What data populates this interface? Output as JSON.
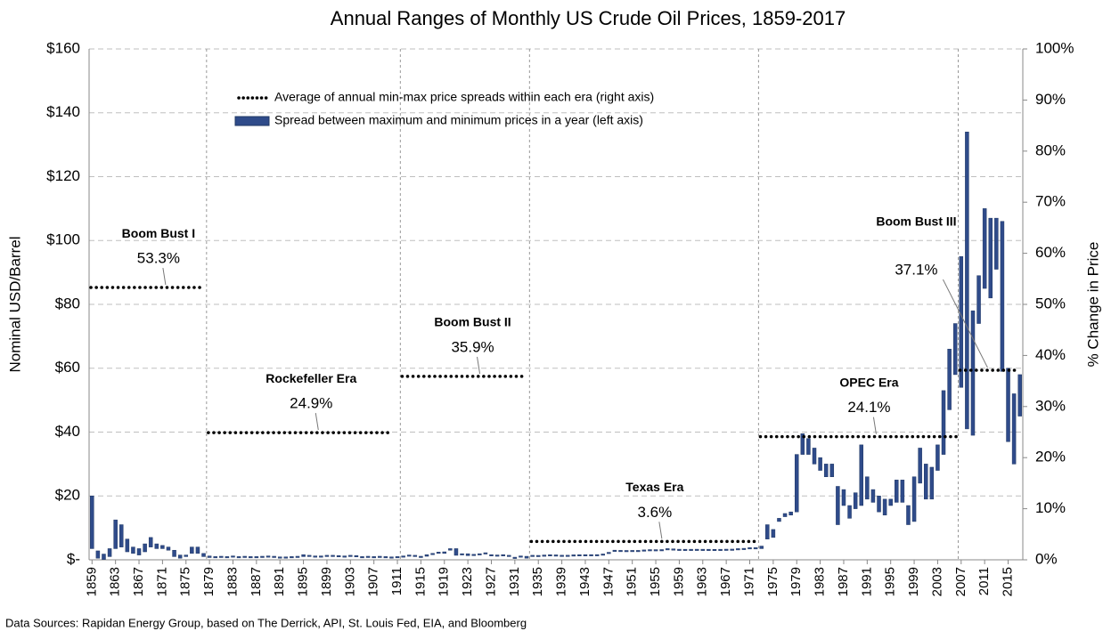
{
  "chart_data": {
    "type": "floating_bar",
    "title": "Annual Ranges of Monthly US Crude Oil Prices, 1859-2017",
    "ylabel": "Nominal USD/Barrel",
    "y2label": "% Change in Price",
    "annotation": "Data Sources:  Rapidan Energy Group, based on The Derrick, API, St. Louis Fed, EIA, and Bloomberg",
    "xlim": [
      1858.5,
      2017.5
    ],
    "xticks": [
      1859,
      1863,
      1867,
      1871,
      1875,
      1879,
      1883,
      1887,
      1891,
      1895,
      1899,
      1903,
      1907,
      1911,
      1915,
      1919,
      1923,
      1927,
      1931,
      1935,
      1939,
      1943,
      1947,
      1951,
      1955,
      1959,
      1963,
      1967,
      1971,
      1975,
      1979,
      1983,
      1987,
      1991,
      1995,
      1999,
      2003,
      2007,
      2011,
      2015
    ],
    "ylim": [
      0,
      160
    ],
    "yticks": [
      {
        "value": 0,
        "label": "$-"
      },
      {
        "value": 20,
        "label": "$20"
      },
      {
        "value": 40,
        "label": "$40"
      },
      {
        "value": 60,
        "label": "$60"
      },
      {
        "value": 80,
        "label": "$80"
      },
      {
        "value": 100,
        "label": "$100"
      },
      {
        "value": 120,
        "label": "$120"
      },
      {
        "value": 140,
        "label": "$140"
      },
      {
        "value": 160,
        "label": "$160"
      }
    ],
    "y2lim": [
      0,
      100
    ],
    "y2ticks": [
      {
        "value": 0,
        "label": "0%"
      },
      {
        "value": 10,
        "label": "10%"
      },
      {
        "value": 20,
        "label": "20%"
      },
      {
        "value": 30,
        "label": "30%"
      },
      {
        "value": 40,
        "label": "40%"
      },
      {
        "value": 50,
        "label": "50%"
      },
      {
        "value": 60,
        "label": "60%"
      },
      {
        "value": 70,
        "label": "70%"
      },
      {
        "value": 80,
        "label": "80%"
      },
      {
        "value": 90,
        "label": "90%"
      },
      {
        "value": 100,
        "label": "100%"
      }
    ],
    "grid": true,
    "series": [
      {
        "name": "Average of annual min-max price spreads within each era  (right axis)",
        "axis": "y2",
        "color": "#000000",
        "eras": [
          {
            "name": "Boom Bust I",
            "start": 1859,
            "end": 1878
          },
          {
            "name": "Rockefeller Era",
            "start": 1879,
            "end": 1910
          },
          {
            "name": "Boom Bust II",
            "start": 1912,
            "end": 1932
          },
          {
            "name": "Texas Era",
            "start": 1934,
            "end": 1972
          },
          {
            "name": "OPEC Era",
            "start": 1973,
            "end": 2006
          },
          {
            "name": "Boom Bust III",
            "start": 2007,
            "end": 2016
          }
        ],
        "values": [
          53.3,
          24.9,
          35.9,
          3.6,
          24.1,
          37.1
        ],
        "value_labels": [
          "53.3%",
          "24.9%",
          "35.9%",
          "3.6%",
          "24.1%",
          "37.1%"
        ]
      },
      {
        "name": "Spread between maximum and minimum prices in a year (left axis)",
        "color": "#2f4b8a",
        "x": [
          1859,
          1860,
          1861,
          1862,
          1863,
          1864,
          1865,
          1866,
          1867,
          1868,
          1869,
          1870,
          1871,
          1872,
          1873,
          1874,
          1875,
          1876,
          1877,
          1878,
          1879,
          1880,
          1881,
          1882,
          1883,
          1884,
          1885,
          1886,
          1887,
          1888,
          1889,
          1890,
          1891,
          1892,
          1893,
          1894,
          1895,
          1896,
          1897,
          1898,
          1899,
          1900,
          1901,
          1902,
          1903,
          1904,
          1905,
          1906,
          1907,
          1908,
          1909,
          1910,
          1911,
          1912,
          1913,
          1914,
          1915,
          1916,
          1917,
          1918,
          1919,
          1920,
          1921,
          1922,
          1923,
          1924,
          1925,
          1926,
          1927,
          1928,
          1929,
          1930,
          1931,
          1932,
          1933,
          1934,
          1935,
          1936,
          1937,
          1938,
          1939,
          1940,
          1941,
          1942,
          1943,
          1944,
          1945,
          1946,
          1947,
          1948,
          1949,
          1950,
          1951,
          1952,
          1953,
          1954,
          1955,
          1956,
          1957,
          1958,
          1959,
          1960,
          1961,
          1962,
          1963,
          1964,
          1965,
          1966,
          1967,
          1968,
          1969,
          1970,
          1971,
          1972,
          1973,
          1974,
          1975,
          1976,
          1977,
          1978,
          1979,
          1980,
          1981,
          1982,
          1983,
          1984,
          1985,
          1986,
          1987,
          1988,
          1989,
          1990,
          1991,
          1992,
          1993,
          1994,
          1995,
          1996,
          1997,
          1998,
          1999,
          2000,
          2001,
          2002,
          2003,
          2004,
          2005,
          2006,
          2007,
          2008,
          2009,
          2010,
          2011,
          2012,
          2013,
          2014,
          2015,
          2016,
          2017
        ],
        "low": [
          3.5,
          0.5,
          0.1,
          1,
          3.5,
          4,
          2.5,
          2,
          1.5,
          2.5,
          4,
          3.5,
          3.5,
          3,
          1,
          0.5,
          1,
          2,
          2,
          1,
          0.7,
          0.6,
          0.7,
          0.6,
          0.8,
          0.6,
          0.7,
          0.6,
          0.6,
          0.7,
          0.8,
          0.7,
          0.5,
          0.5,
          0.6,
          0.7,
          1,
          1,
          0.8,
          0.8,
          1,
          1,
          0.9,
          0.8,
          1,
          0.9,
          0.6,
          0.7,
          0.6,
          0.7,
          0.6,
          0.5,
          0.6,
          0.8,
          1.1,
          1,
          0.7,
          1.1,
          1.6,
          2,
          2,
          3,
          1.4,
          1.5,
          1.3,
          1.3,
          1.5,
          1.8,
          1.2,
          1.1,
          1.2,
          1,
          0.4,
          0.8,
          0.5,
          1,
          0.97,
          1.09,
          1.18,
          1.13,
          1.02,
          1.02,
          1.14,
          1.19,
          1.2,
          1.21,
          1.22,
          1.41,
          1.93,
          2.6,
          2.54,
          2.51,
          2.53,
          2.53,
          2.68,
          2.78,
          2.77,
          2.79,
          3.09,
          3.01,
          2.9,
          2.88,
          2.89,
          2.9,
          2.89,
          2.88,
          2.86,
          2.88,
          2.92,
          2.94,
          3.09,
          3.18,
          3.39,
          3.39,
          3.5,
          6.5,
          7,
          12,
          13.5,
          14,
          15,
          33,
          33,
          30,
          28,
          26,
          26,
          11,
          17,
          13,
          16,
          17,
          19,
          18,
          15,
          14,
          17,
          18,
          18,
          11,
          12,
          24,
          19,
          19,
          28,
          33,
          47,
          58,
          54,
          41,
          39,
          74,
          85,
          82,
          91,
          59,
          37,
          30,
          45
        ],
        "high": [
          20,
          2.8,
          1.8,
          3.5,
          12.5,
          11,
          6.5,
          4,
          3.5,
          5,
          7,
          5,
          4.5,
          4,
          3,
          1.5,
          1.5,
          4,
          4,
          2,
          1.2,
          1,
          1,
          0.8,
          1.1,
          0.8,
          0.9,
          0.8,
          0.9,
          0.9,
          1,
          0.9,
          0.7,
          0.6,
          0.8,
          0.9,
          1.6,
          1.4,
          1,
          1.2,
          1.4,
          1.4,
          1.1,
          1,
          1.3,
          1.2,
          0.8,
          0.9,
          0.8,
          0.8,
          0.7,
          0.6,
          0.9,
          1.1,
          1.3,
          1.2,
          1,
          1.6,
          2,
          2.2,
          2.5,
          3.5,
          3.5,
          1.8,
          1.9,
          1.5,
          1.8,
          2,
          1.6,
          1.3,
          1.3,
          1.2,
          0.8,
          0.9,
          1.1,
          1,
          0.97,
          1.09,
          1.18,
          1.13,
          1.02,
          1.02,
          1.14,
          1.19,
          1.2,
          1.21,
          1.22,
          1.6,
          2.3,
          2.6,
          2.54,
          2.51,
          2.53,
          2.53,
          2.8,
          2.78,
          2.77,
          2.85,
          3.09,
          3.01,
          2.9,
          2.88,
          2.89,
          2.9,
          2.89,
          2.88,
          2.86,
          2.88,
          2.92,
          2.94,
          3.18,
          3.39,
          3.6,
          3.6,
          4.3,
          11,
          9.5,
          13,
          14.5,
          15,
          33,
          39.5,
          38,
          35,
          32,
          30,
          30,
          23,
          22,
          17,
          21,
          36,
          26,
          22,
          20,
          19,
          19,
          25,
          25,
          17,
          26,
          35,
          30,
          29,
          36,
          53,
          66,
          74,
          95,
          134,
          78,
          89,
          110,
          107,
          107,
          106,
          60,
          52,
          58
        ]
      }
    ]
  }
}
